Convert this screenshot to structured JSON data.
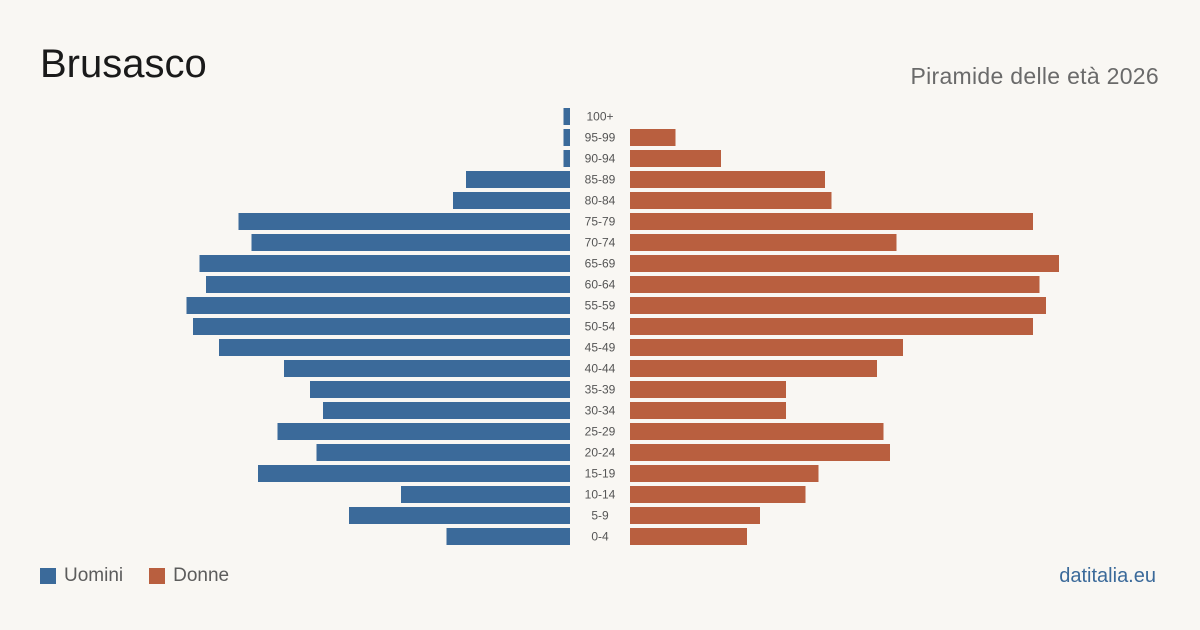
{
  "title": "Brusasco",
  "subtitle": "Piramide delle età 2026",
  "brand": "datitalia.eu",
  "colors": {
    "male": "#3b6a9a",
    "female": "#b95f3f",
    "background": "#f9f7f3"
  },
  "legend": {
    "male": "Uomini",
    "female": "Donne"
  },
  "chart_data": {
    "type": "bar",
    "orientation": "horizontal-pyramid",
    "title": "Brusasco",
    "subtitle": "Piramide delle età 2026",
    "categories": [
      "100+",
      "95-99",
      "90-94",
      "85-89",
      "80-84",
      "75-79",
      "70-74",
      "65-69",
      "60-64",
      "55-59",
      "50-54",
      "45-49",
      "40-44",
      "35-39",
      "30-34",
      "25-29",
      "20-24",
      "15-19",
      "10-14",
      "5-9",
      "0-4"
    ],
    "series": [
      {
        "name": "Uomini",
        "values": [
          1,
          1,
          1,
          16,
          18,
          51,
          49,
          57,
          56,
          59,
          58,
          54,
          44,
          40,
          38,
          45,
          39,
          48,
          26,
          34,
          19
        ]
      },
      {
        "name": "Donne",
        "values": [
          0,
          7,
          14,
          30,
          31,
          62,
          41,
          66,
          63,
          64,
          62,
          42,
          38,
          24,
          24,
          39,
          40,
          29,
          27,
          20,
          18
        ]
      }
    ],
    "legend": "bottom-left",
    "grid": false
  }
}
